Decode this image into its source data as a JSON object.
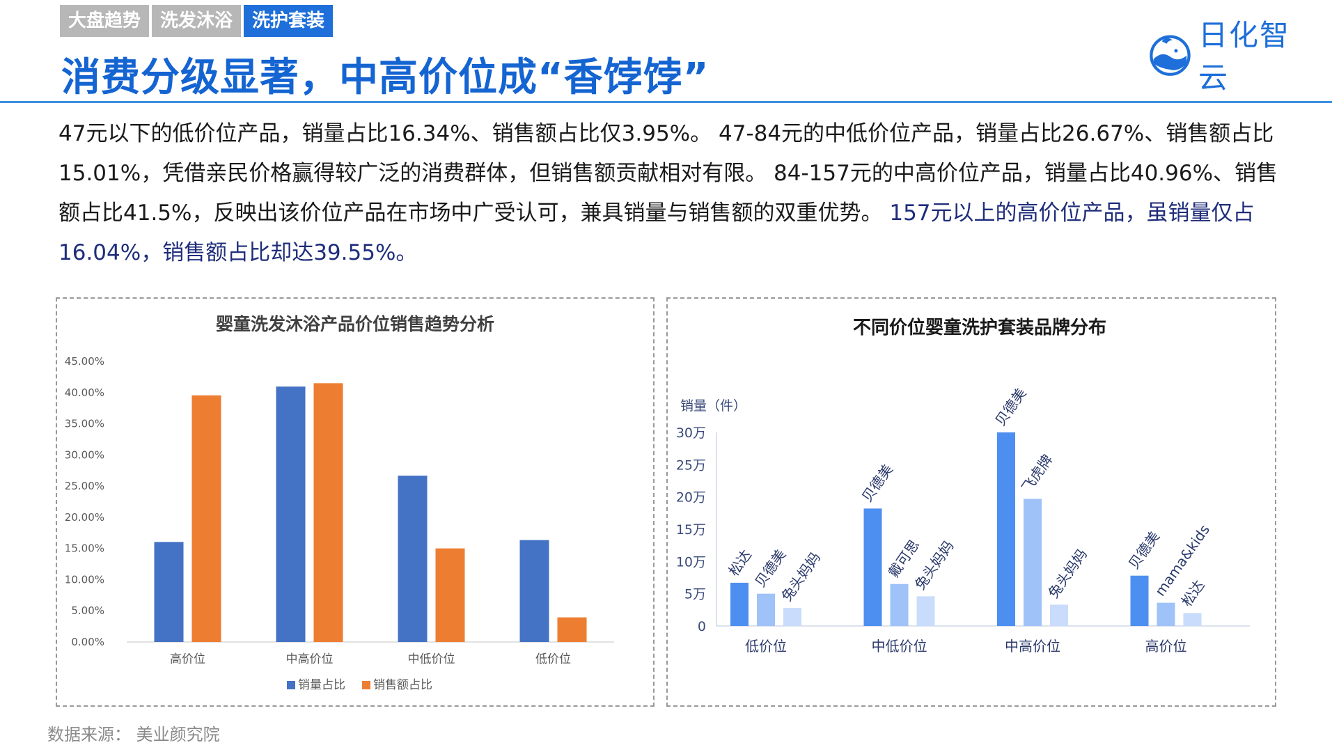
{
  "tabs": [
    {
      "label": "大盘趋势",
      "active": false
    },
    {
      "label": "洗发沐浴",
      "active": false
    },
    {
      "label": "洗护套装",
      "active": true
    }
  ],
  "title": "消费分级显著，中高价位成“香饽饽”",
  "logo": {
    "text": "日化智云",
    "icon": "whale-logo-icon",
    "color": "#1e6fd9"
  },
  "paragraph": {
    "part1": "47元以下的低价位产品，销量占比16.34%、销售额占比仅3.95%。 47-84元的中低价位产品，销量占比26.67%、销售额占比15.01%，凭借亲民价格赢得较广泛的消费群体，但销售额贡献相对有限。 84-157元的中高价位产品，销量占比40.96%、销售额占比41.5%，反映出该价位产品在市场中广受认可，兼具销量与销售额的双重优势。 ",
    "part2": "157元以上的高价位产品，虽销量仅占16.04%，销售额占比却达39.55%。"
  },
  "source": "数据来源：  美业颜究院",
  "chart_data": [
    {
      "type": "bar",
      "title": "婴童洗发沐浴产品价位销售趋势分析",
      "categories": [
        "高价位",
        "中高价位",
        "中低价位",
        "低价位"
      ],
      "series": [
        {
          "name": "销量占比",
          "color": "#4472c4",
          "values": [
            16.04,
            40.96,
            26.67,
            16.34
          ]
        },
        {
          "name": "销售额占比",
          "color": "#ed7d31",
          "values": [
            39.55,
            41.5,
            15.01,
            3.95
          ]
        }
      ],
      "ylim": [
        0,
        45
      ],
      "yticks": [
        "0.00%",
        "5.00%",
        "10.00%",
        "15.00%",
        "20.00%",
        "25.00%",
        "30.00%",
        "35.00%",
        "40.00%",
        "45.00%"
      ],
      "legend": "bottom",
      "grid": false
    },
    {
      "type": "bar",
      "title": "不同价位婴童洗护套装品牌分布",
      "ylabel": "销量（件）",
      "ylim": [
        0,
        300000
      ],
      "yticks": [
        "0",
        "5万",
        "10万",
        "15万",
        "20万",
        "25万",
        "30万"
      ],
      "groups": [
        {
          "category": "低价位",
          "bars": [
            {
              "brand": "松达",
              "value": 67000
            },
            {
              "brand": "贝德美",
              "value": 50000
            },
            {
              "brand": "兔头妈妈",
              "value": 28000
            }
          ]
        },
        {
          "category": "中低价位",
          "bars": [
            {
              "brand": "贝德美",
              "value": 182000
            },
            {
              "brand": "戴可思",
              "value": 65000
            },
            {
              "brand": "兔头妈妈",
              "value": 46000
            }
          ]
        },
        {
          "category": "中高价位",
          "bars": [
            {
              "brand": "贝德美",
              "value": 300000
            },
            {
              "brand": "飞虎牌",
              "value": 197000
            },
            {
              "brand": "兔头妈妈",
              "value": 33000
            }
          ]
        },
        {
          "category": "高价位",
          "bars": [
            {
              "brand": "贝德美",
              "value": 78000
            },
            {
              "brand": "mama&kids",
              "value": 36000
            },
            {
              "brand": "松达",
              "value": 20000
            }
          ]
        }
      ],
      "colors": [
        "#4d8ff0",
        "#9fc2f8",
        "#c9dcfb"
      ],
      "grid": false
    }
  ]
}
